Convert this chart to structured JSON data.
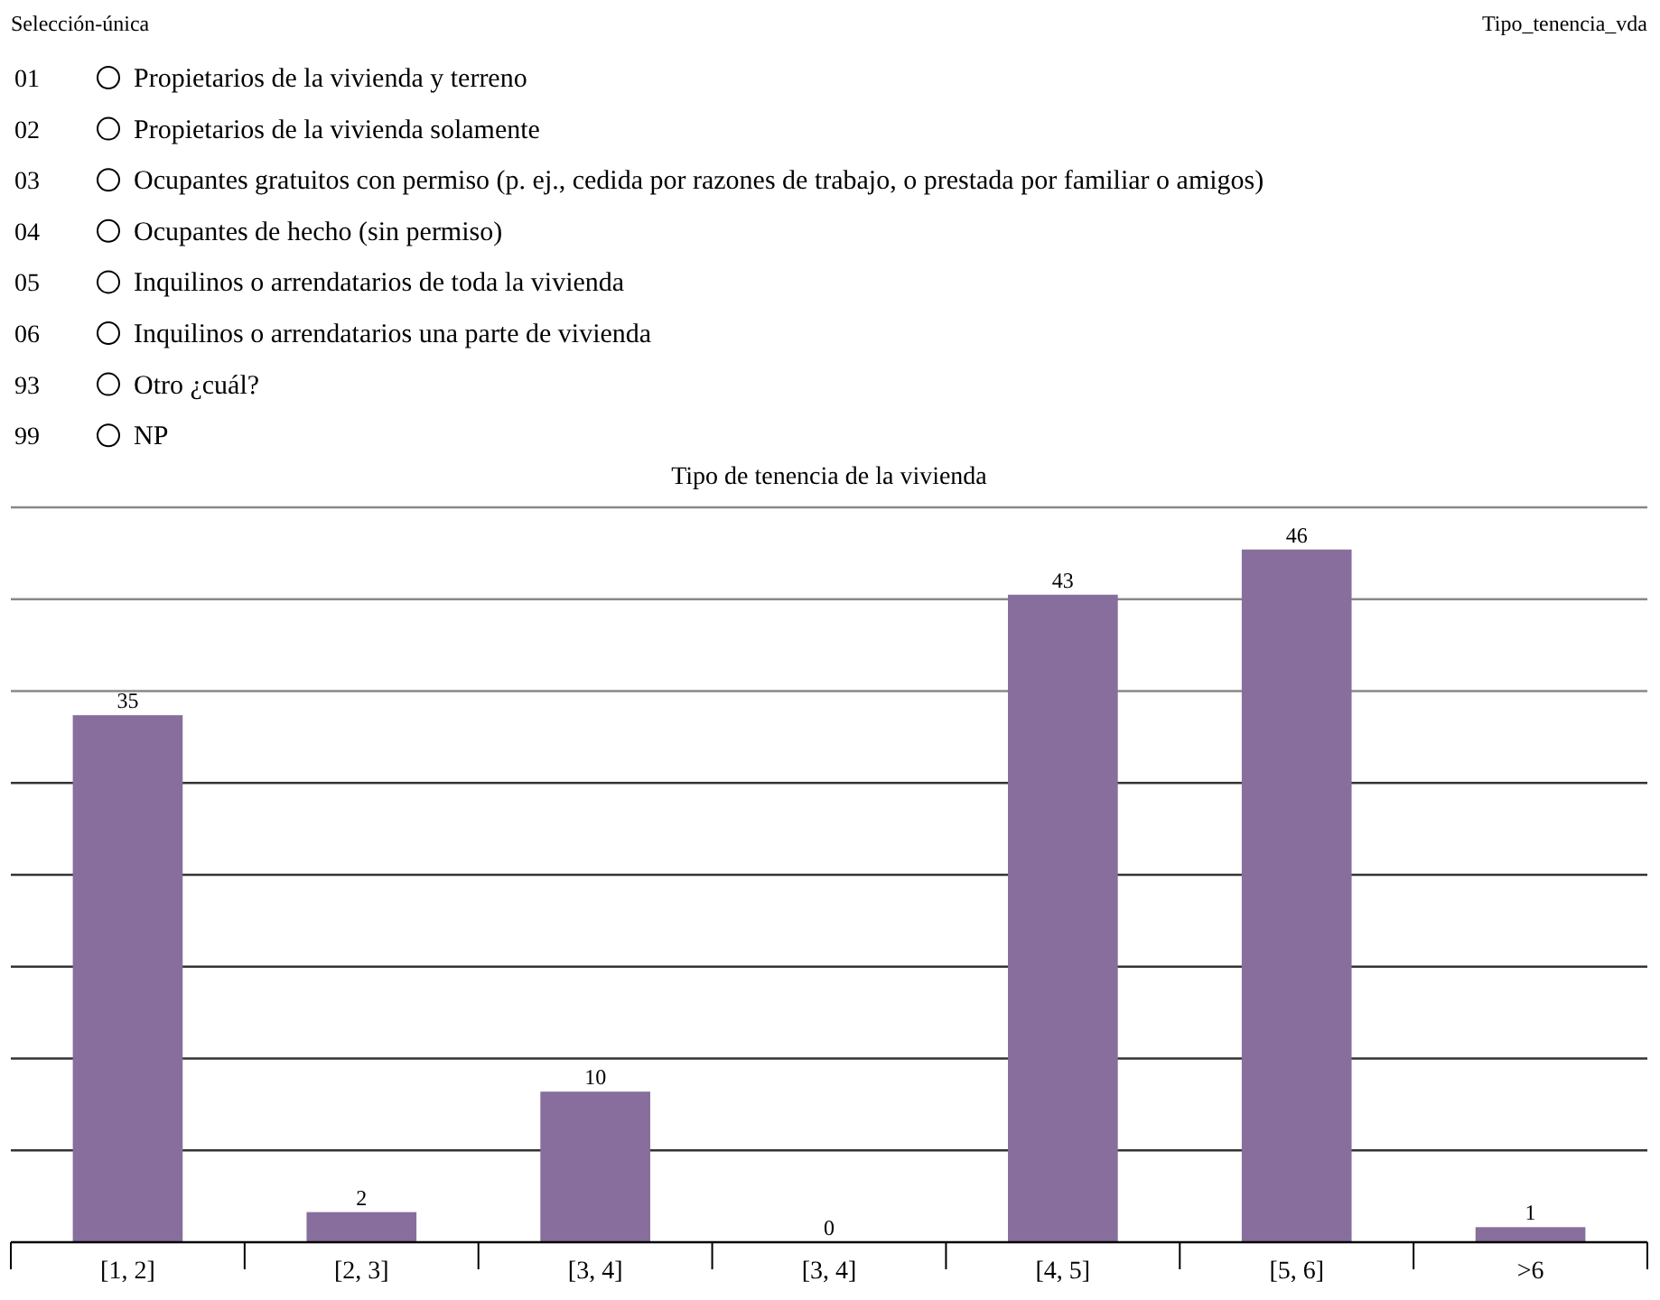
{
  "chart_data": {
    "type": "bar",
    "title": "Tipo de tenencia de la vivienda",
    "categories": [
      "[1, 2]",
      "[2, 3]",
      "[3, 4]",
      "[3, 4]",
      "[4, 5]",
      "[5, 6]",
      ">6"
    ],
    "values": [
      35,
      2,
      10,
      0,
      43,
      46,
      1
    ],
    "color": "#876e9c",
    "data_labels": true,
    "ylim": [
      0,
      48.8
    ],
    "yticks": [
      {
        "value": 6.1,
        "label": null
      },
      {
        "value": 12.2,
        "label": null
      },
      {
        "value": 18.3,
        "label": null
      },
      {
        "value": 24.4,
        "label": null
      },
      {
        "value": 30.5,
        "label": null
      },
      {
        "value": 36.6,
        "label": null
      },
      {
        "value": 42.7,
        "label": null
      },
      {
        "value": 48.8,
        "label": null
      }
    ],
    "grid": "y",
    "tick_labels": "x",
    "annotations": [
      "Selección-única",
      "Tipo_tenencia_vda",
      "01",
      "Propietarios de la vivienda y terreno",
      "02",
      "Propietarios de la vivienda solamente",
      "03",
      "Ocupantes gratuitos con permiso (p. ej., cedida por razones de trabajo, o prestada por familiar o amigos)",
      "04",
      "Ocupantes de hecho (sin permiso)",
      "05",
      "Inquilinos o arrendatarios de toda la vivienda",
      "06",
      "Inquilinos o arrendatarios una parte de vivienda",
      "93",
      "Otro ¿cuál?",
      "99",
      "NP"
    ]
  }
}
